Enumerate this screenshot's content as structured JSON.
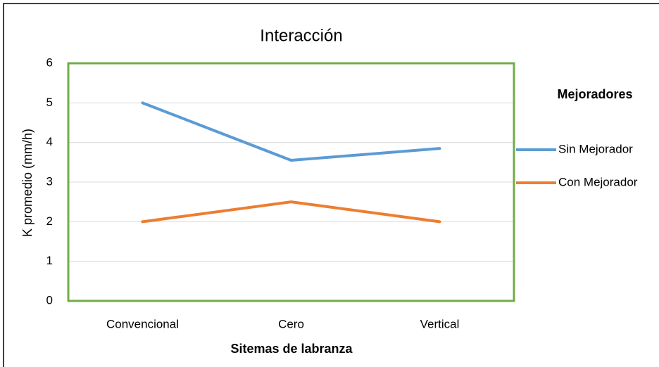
{
  "chart_data": {
    "type": "line",
    "title": "Interacción",
    "x_label": "Sitemas de labranza",
    "y_label": "K promedio (mm/h)",
    "legend_title": "Mejoradores",
    "categories": [
      "Convencional",
      "Cero",
      "Vertical"
    ],
    "series": [
      {
        "name": "Sin Mejorador",
        "color": "#5b9bd5",
        "values": [
          5.0,
          3.55,
          3.85
        ]
      },
      {
        "name": "Con Mejorador",
        "color": "#ed7d31",
        "values": [
          2.0,
          2.5,
          2.0
        ]
      }
    ],
    "ylim": [
      0,
      6
    ],
    "yticks": [
      0,
      1,
      2,
      3,
      4,
      5,
      6
    ],
    "grid": true,
    "legend": "right"
  }
}
